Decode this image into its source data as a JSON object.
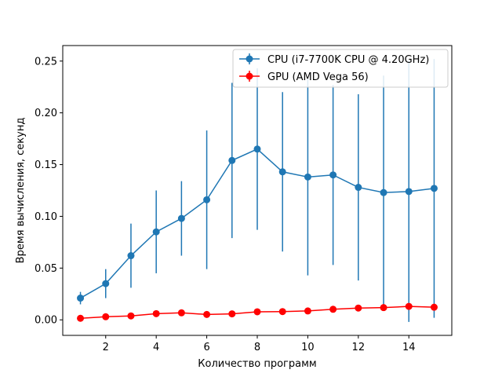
{
  "chart_data": {
    "type": "line",
    "title": "",
    "xlabel": "Количество программ",
    "ylabel": "Время вычисления, секунд",
    "xlim": [
      0.3,
      15.7
    ],
    "ylim": [
      -0.015,
      0.265
    ],
    "xticks": [
      2,
      4,
      6,
      8,
      10,
      12,
      14
    ],
    "yticks": [
      0.0,
      0.05,
      0.1,
      0.15,
      0.2,
      0.25
    ],
    "xtick_labels": [
      "2",
      "4",
      "6",
      "8",
      "10",
      "12",
      "14"
    ],
    "ytick_labels": [
      "0.00",
      "0.05",
      "0.10",
      "0.15",
      "0.20",
      "0.25"
    ],
    "grid": false,
    "legend_position": "top-right",
    "x": [
      1,
      2,
      3,
      4,
      5,
      6,
      7,
      8,
      9,
      10,
      11,
      12,
      13,
      14,
      15
    ],
    "series": [
      {
        "name": "CPU (i7-7700K CPU @ 4.20GHz)",
        "color": "#1f77b4",
        "values": [
          0.021,
          0.035,
          0.062,
          0.085,
          0.098,
          0.116,
          0.154,
          0.165,
          0.143,
          0.138,
          0.14,
          0.128,
          0.123,
          0.124,
          0.127
        ],
        "errors": [
          0.006,
          0.014,
          0.031,
          0.04,
          0.036,
          0.067,
          0.075,
          0.078,
          0.077,
          0.095,
          0.087,
          0.09,
          0.113,
          0.126,
          0.125
        ]
      },
      {
        "name": "GPU (AMD Vega 56)",
        "color": "#ff0000",
        "values": [
          0.0015,
          0.003,
          0.0038,
          0.006,
          0.0068,
          0.0052,
          0.0058,
          0.0078,
          0.008,
          0.0086,
          0.0102,
          0.0114,
          0.0118,
          0.013,
          0.0122
        ],
        "errors": [
          0.0004,
          0.0004,
          0.0005,
          0.0006,
          0.0006,
          0.0005,
          0.0006,
          0.0007,
          0.0007,
          0.0008,
          0.0008,
          0.0009,
          0.0009,
          0.001,
          0.001
        ]
      }
    ]
  }
}
